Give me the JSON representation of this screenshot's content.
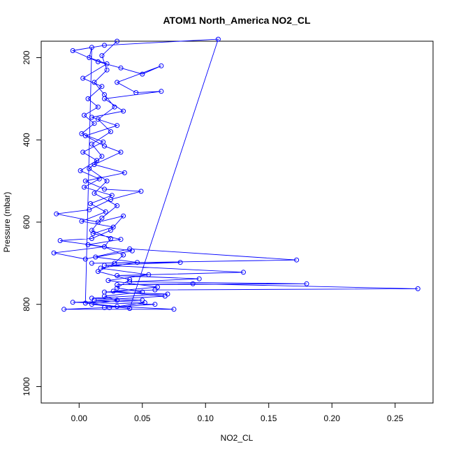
{
  "chart_data": {
    "type": "line",
    "title": "ATOM1 North_America NO2_CL",
    "xlabel": "NO2_CL",
    "ylabel": "Pressure (mbar)",
    "xlim": [
      -0.03,
      0.28
    ],
    "ylim": [
      1040,
      160
    ],
    "y_reversed": true,
    "grid": false,
    "legend": "none",
    "x_ticks": [
      {
        "value": 0.0,
        "label": "0.00"
      },
      {
        "value": 0.05,
        "label": "0.05"
      },
      {
        "value": 0.1,
        "label": "0.10"
      },
      {
        "value": 0.15,
        "label": "0.15"
      },
      {
        "value": 0.2,
        "label": "0.20"
      },
      {
        "value": 0.25,
        "label": "0.25"
      }
    ],
    "y_ticks": [
      {
        "value": 200,
        "label": "200"
      },
      {
        "value": 400,
        "label": "400"
      },
      {
        "value": 600,
        "label": "600"
      },
      {
        "value": 800,
        "label": "800"
      },
      {
        "value": 1000,
        "label": "1000"
      }
    ],
    "series_color": "#0000ff",
    "marker": "open-circle",
    "series": [
      {
        "name": "",
        "points": [
          [
            0.03,
            160
          ],
          [
            0.018,
            195
          ],
          [
            0.022,
            230
          ],
          [
            0.012,
            260
          ],
          [
            0.02,
            290
          ],
          [
            0.028,
            320
          ],
          [
            0.015,
            350
          ],
          [
            0.025,
            380
          ],
          [
            0.01,
            410
          ],
          [
            0.018,
            440
          ],
          [
            0.008,
            470
          ],
          [
            0.022,
            500
          ],
          [
            0.012,
            530
          ],
          [
            0.03,
            560
          ],
          [
            0.018,
            590
          ],
          [
            0.01,
            620
          ],
          [
            0.025,
            640
          ],
          [
            0.02,
            660
          ],
          [
            0.035,
            680
          ],
          [
            0.028,
            700
          ],
          [
            0.015,
            720
          ],
          [
            0.04,
            740
          ],
          [
            0.03,
            760
          ],
          [
            0.05,
            770
          ],
          [
            0.02,
            780
          ],
          [
            0.03,
            790
          ],
          [
            0.01,
            800
          ],
          [
            0.04,
            810
          ],
          [
            0.11,
            155
          ],
          [
            0.02,
            170
          ],
          [
            -0.005,
            183
          ],
          [
            0.015,
            210
          ],
          [
            0.033,
            225
          ],
          [
            0.05,
            240
          ],
          [
            0.065,
            220
          ],
          [
            0.03,
            260
          ],
          [
            0.045,
            285
          ],
          [
            0.065,
            282
          ],
          [
            0.02,
            300
          ],
          [
            0.035,
            330
          ],
          [
            0.01,
            345
          ],
          [
            0.03,
            365
          ],
          [
            0.005,
            390
          ],
          [
            0.02,
            415
          ],
          [
            0.033,
            430
          ],
          [
            0.012,
            460
          ],
          [
            0.036,
            480
          ],
          [
            0.005,
            500
          ],
          [
            0.02,
            520
          ],
          [
            0.049,
            525
          ],
          [
            0.025,
            545
          ],
          [
            0.008,
            570
          ],
          [
            -0.018,
            580
          ],
          [
            0.015,
            600
          ],
          [
            0.035,
            585
          ],
          [
            0.025,
            620
          ],
          [
            0.01,
            640
          ],
          [
            -0.015,
            645
          ],
          [
            0.02,
            660
          ],
          [
            -0.02,
            675
          ],
          [
            0.005,
            690
          ],
          [
            0.04,
            665
          ],
          [
            0.172,
            692
          ],
          [
            0.01,
            700
          ],
          [
            0.08,
            698
          ],
          [
            0.02,
            705
          ],
          [
            0.13,
            722
          ],
          [
            0.03,
            730
          ],
          [
            0.095,
            738
          ],
          [
            0.04,
            745
          ],
          [
            0.18,
            750
          ],
          [
            0.03,
            752
          ],
          [
            0.09,
            750
          ],
          [
            0.268,
            762
          ],
          [
            0.06,
            765
          ],
          [
            0.02,
            770
          ],
          [
            0.07,
            775
          ],
          [
            0.01,
            785
          ],
          [
            0.05,
            790
          ],
          [
            -0.005,
            795
          ],
          [
            0.06,
            800
          ],
          [
            0.02,
            808
          ],
          [
            -0.012,
            812
          ],
          [
            0.075,
            812
          ],
          [
            0.03,
            805
          ],
          [
            0.005,
            797
          ],
          [
            0.01,
            175
          ],
          [
            0.008,
            200
          ],
          [
            0.022,
            215
          ],
          [
            0.003,
            250
          ],
          [
            0.018,
            270
          ],
          [
            0.007,
            300
          ],
          [
            0.015,
            320
          ],
          [
            0.004,
            340
          ],
          [
            0.012,
            360
          ],
          [
            0.002,
            385
          ],
          [
            0.019,
            405
          ],
          [
            0.003,
            430
          ],
          [
            0.014,
            450
          ],
          [
            0.001,
            475
          ],
          [
            0.016,
            495
          ],
          [
            0.004,
            515
          ],
          [
            0.026,
            535
          ],
          [
            0.009,
            555
          ],
          [
            0.021,
            575
          ],
          [
            0.002,
            598
          ],
          [
            0.027,
            612
          ],
          [
            0.011,
            628
          ],
          [
            0.033,
            642
          ],
          [
            0.007,
            655
          ],
          [
            0.042,
            670
          ],
          [
            0.013,
            685
          ],
          [
            0.046,
            698
          ],
          [
            0.017,
            712
          ],
          [
            0.055,
            728
          ],
          [
            0.023,
            742
          ],
          [
            0.062,
            758
          ],
          [
            0.027,
            768
          ],
          [
            0.068,
            780
          ],
          [
            0.012,
            790
          ],
          [
            0.052,
            796
          ],
          [
            0.024,
            808
          ]
        ]
      }
    ]
  }
}
